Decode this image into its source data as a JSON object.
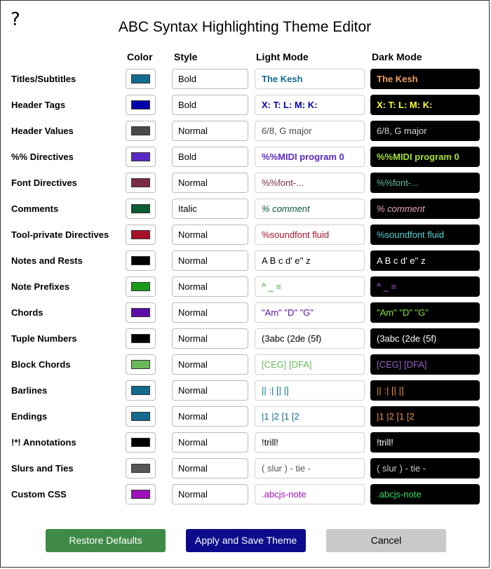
{
  "dialog": {
    "help_glyph": "?",
    "title": "ABC Syntax Highlighting Theme Editor"
  },
  "columns": {
    "color": "Color",
    "style": "Style",
    "light": "Light Mode",
    "dark": "Dark Mode"
  },
  "rows": [
    {
      "label": "Titles/Subtitles",
      "color": "#136a8f",
      "style": "Bold",
      "sample": "The Kesh",
      "light_color": "#136a8f",
      "dark_color": "#f0a060",
      "weight": "bold",
      "italic": false
    },
    {
      "label": "Header Tags",
      "color": "#0000a8",
      "style": "Bold",
      "sample": "X: T: L: M: K:",
      "light_color": "#0000a8",
      "dark_color": "#ffff33",
      "weight": "bold",
      "italic": false
    },
    {
      "label": "Header Values",
      "color": "#4a4a4a",
      "style": "Normal",
      "sample": "6/8, G major",
      "light_color": "#4a4a4a",
      "dark_color": "#d8d8d8",
      "weight": "normal",
      "italic": false
    },
    {
      "label": "%% Directives",
      "color": "#5a28c8",
      "style": "Bold",
      "sample": "%%MIDI program 0",
      "light_color": "#5a28c8",
      "dark_color": "#a6e22e",
      "weight": "bold",
      "italic": false
    },
    {
      "label": "Font Directives",
      "color": "#7a2a48",
      "style": "Normal",
      "sample": "%%font-...",
      "light_color": "#7a2a48",
      "dark_color": "#66c2a5",
      "weight": "normal",
      "italic": false
    },
    {
      "label": "Comments",
      "color": "#0a5a32",
      "style": "Italic",
      "sample": "% comment",
      "light_color": "#0a5a32",
      "dark_color": "#e8a0c8",
      "weight": "normal",
      "italic": true
    },
    {
      "label": "Tool-private Directives",
      "color": "#a8102a",
      "style": "Normal",
      "sample": "%soundfont fluid",
      "light_color": "#a8102a",
      "dark_color": "#4ed8d8",
      "weight": "normal",
      "italic": false
    },
    {
      "label": "Notes and Rests",
      "color": "#000000",
      "style": "Normal",
      "sample": "A B c d' e'' z",
      "light_color": "#000000",
      "dark_color": "#ffffff",
      "weight": "normal",
      "italic": false
    },
    {
      "label": "Note Prefixes",
      "color": "#1a9a1a",
      "style": "Normal",
      "sample": "^ _ =",
      "light_color": "#1a9a1a",
      "dark_color": "#cc66ff",
      "weight": "normal",
      "italic": false
    },
    {
      "label": "Chords",
      "color": "#5a10a8",
      "style": "Normal",
      "sample": "\"Am\"  \"D\"  \"G\"",
      "light_color": "#5a10a8",
      "dark_color": "#88e838",
      "weight": "normal",
      "italic": false
    },
    {
      "label": "Tuple Numbers",
      "color": "#000000",
      "style": "Normal",
      "sample": "(3abc  (2de  (5f)",
      "light_color": "#000000",
      "dark_color": "#ffffff",
      "weight": "normal",
      "italic": false
    },
    {
      "label": "Block Chords",
      "color": "#6ab85a",
      "style": "Normal",
      "sample": "[CEG]  [DFA]",
      "light_color": "#6ab85a",
      "dark_color": "#9a60c8",
      "weight": "normal",
      "italic": false
    },
    {
      "label": "Barlines",
      "color": "#136a8f",
      "style": "Normal",
      "sample": "|| :| [| |]",
      "light_color": "#136a8f",
      "dark_color": "#e89040",
      "weight": "normal",
      "italic": false
    },
    {
      "label": "Endings",
      "color": "#136a8f",
      "style": "Normal",
      "sample": "|1  |2  [1  [2",
      "light_color": "#136a8f",
      "dark_color": "#e89040",
      "weight": "normal",
      "italic": false
    },
    {
      "label": "!*! Annotations",
      "color": "#000000",
      "style": "Normal",
      "sample": "!trill!",
      "light_color": "#000000",
      "dark_color": "#ffffff",
      "weight": "normal",
      "italic": false
    },
    {
      "label": "Slurs and Ties",
      "color": "#555555",
      "style": "Normal",
      "sample": "( slur )  - tie -",
      "light_color": "#555555",
      "dark_color": "#cccccc",
      "weight": "normal",
      "italic": false
    },
    {
      "label": "Custom CSS",
      "color": "#a010b8",
      "style": "Normal",
      "sample": ".abcjs-note",
      "light_color": "#a010b8",
      "dark_color": "#33dd66",
      "weight": "normal",
      "italic": false
    }
  ],
  "buttons": {
    "restore": "Restore Defaults",
    "apply": "Apply and Save Theme",
    "cancel": "Cancel"
  }
}
